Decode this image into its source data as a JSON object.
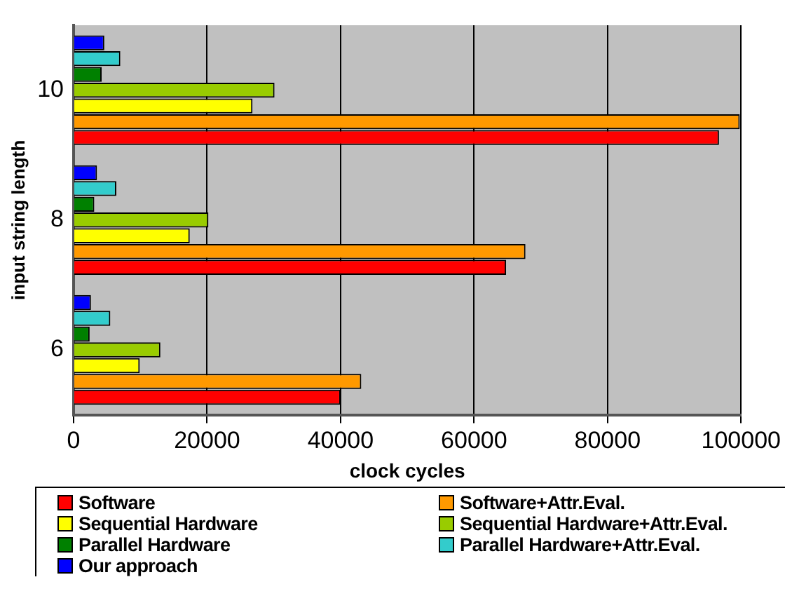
{
  "chart_data": {
    "type": "bar",
    "orientation": "horizontal",
    "xlabel": "clock cycles",
    "ylabel": "input string length",
    "categories": [
      "10",
      "8",
      "6"
    ],
    "series": [
      {
        "name": "Software",
        "color": "#ff0000",
        "values": [
          96700,
          64800,
          40000
        ]
      },
      {
        "name": "Software+Attr.Eval.",
        "color": "#ff9900",
        "values": [
          99800,
          67700,
          43100
        ]
      },
      {
        "name": "Sequential Hardware",
        "color": "#ffff00",
        "values": [
          26800,
          17400,
          9900
        ]
      },
      {
        "name": "Sequential Hardware+Attr.Eval.",
        "color": "#99cc00",
        "values": [
          30100,
          20200,
          13000
        ]
      },
      {
        "name": "Parallel Hardware",
        "color": "#008000",
        "values": [
          4200,
          3100,
          2400
        ]
      },
      {
        "name": "Parallel Hardware+Attr.Eval.",
        "color": "#33cccc",
        "values": [
          7000,
          6400,
          5500
        ]
      },
      {
        "name": "Our approach",
        "color": "#0000ff",
        "values": [
          4600,
          3500,
          2600
        ]
      }
    ],
    "xlim": [
      0,
      100000
    ],
    "xticks": [
      0,
      20000,
      40000,
      60000,
      80000,
      100000
    ],
    "grid": "x",
    "legend": "bottom"
  }
}
